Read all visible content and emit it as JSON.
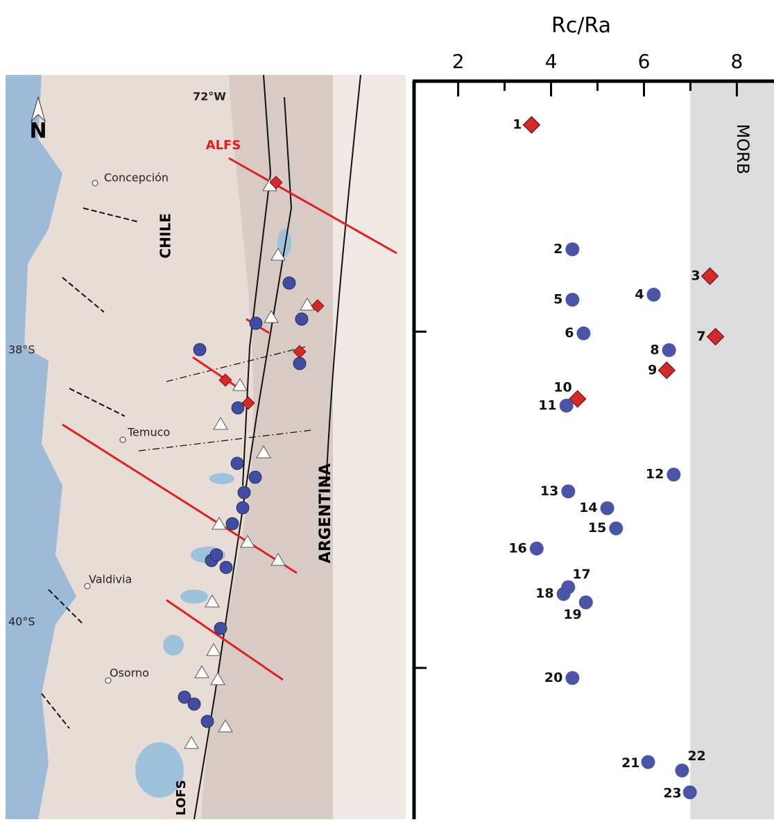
{
  "map": {
    "labels": {
      "lon": "72°W",
      "alfs": "ALFS",
      "concepcion": "Concepción",
      "chile": "CHILE",
      "temuco": "Temuco",
      "argentina": "ARGENTINA",
      "valdivia": "Valdivia",
      "osorno": "Osorno",
      "lofs": "LOFS",
      "north": "N",
      "lat38": "38°S",
      "lat40": "40°S"
    }
  },
  "chart_data": {
    "type": "scatter",
    "title": "Rc/Ra",
    "xlim": [
      1.05,
      8.8
    ],
    "xticks": [
      2,
      4,
      6,
      8
    ],
    "xminorticks": [
      3,
      5,
      7
    ],
    "ylim": [
      36.51,
      40.9
    ],
    "yticks": [
      38,
      40
    ],
    "shaded_region": {
      "xmin": 7,
      "label": "MORB",
      "color": "#dcdcdc"
    },
    "colors": {
      "diamond": "#d42a2a",
      "circle": "#4a55a8"
    },
    "points": [
      {
        "label": "1",
        "x": 3.58,
        "y": 36.77,
        "marker": "diamond"
      },
      {
        "label": "2",
        "x": 4.46,
        "y": 37.51,
        "marker": "circle"
      },
      {
        "label": "3",
        "x": 7.42,
        "y": 37.67,
        "marker": "diamond"
      },
      {
        "label": "4",
        "x": 6.21,
        "y": 37.78,
        "marker": "circle"
      },
      {
        "label": "5",
        "x": 4.46,
        "y": 37.81,
        "marker": "circle"
      },
      {
        "label": "6",
        "x": 4.7,
        "y": 38.01,
        "marker": "circle"
      },
      {
        "label": "7",
        "x": 7.54,
        "y": 38.03,
        "marker": "diamond"
      },
      {
        "label": "8",
        "x": 6.54,
        "y": 38.11,
        "marker": "circle"
      },
      {
        "label": "9",
        "x": 6.49,
        "y": 38.23,
        "marker": "diamond"
      },
      {
        "label": "10",
        "x": 4.57,
        "y": 38.4,
        "marker": "diamond"
      },
      {
        "label": "11",
        "x": 4.33,
        "y": 38.44,
        "marker": "circle"
      },
      {
        "label": "12",
        "x": 6.64,
        "y": 38.85,
        "marker": "circle"
      },
      {
        "label": "13",
        "x": 4.37,
        "y": 38.95,
        "marker": "circle"
      },
      {
        "label": "14",
        "x": 5.21,
        "y": 39.05,
        "marker": "circle"
      },
      {
        "label": "15",
        "x": 5.4,
        "y": 39.17,
        "marker": "circle"
      },
      {
        "label": "16",
        "x": 3.69,
        "y": 39.29,
        "marker": "circle"
      },
      {
        "label": "17",
        "x": 4.37,
        "y": 39.52,
        "marker": "circle"
      },
      {
        "label": "18",
        "x": 4.27,
        "y": 39.56,
        "marker": "circle"
      },
      {
        "label": "19",
        "x": 4.75,
        "y": 39.61,
        "marker": "circle"
      },
      {
        "label": "20",
        "x": 4.46,
        "y": 40.06,
        "marker": "circle"
      },
      {
        "label": "21",
        "x": 6.09,
        "y": 40.56,
        "marker": "circle"
      },
      {
        "label": "22",
        "x": 6.82,
        "y": 40.61,
        "marker": "circle"
      },
      {
        "label": "23",
        "x": 6.99,
        "y": 40.74,
        "marker": "circle"
      }
    ]
  }
}
